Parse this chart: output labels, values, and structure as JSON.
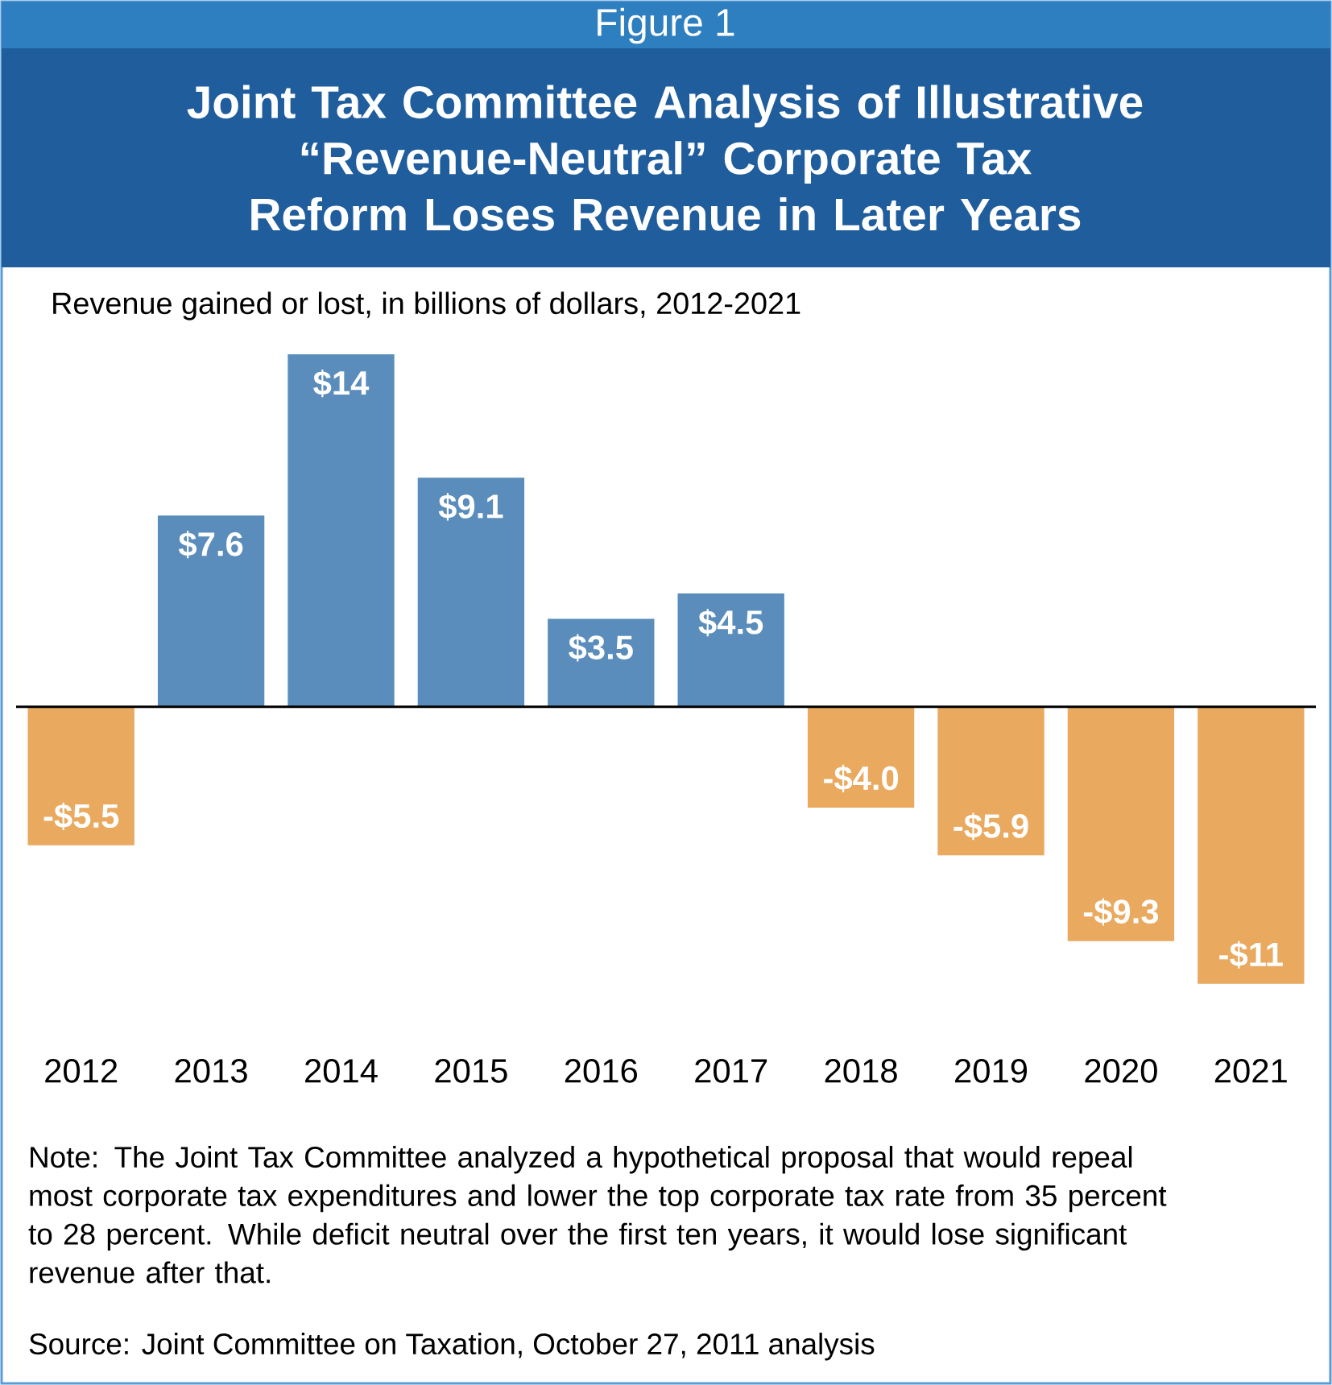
{
  "chart_data": {
    "type": "bar",
    "title": "Joint Tax Committee Analysis of Illustrative “Revenue-Neutral” Corporate Tax Reform Loses Revenue in Later Years",
    "subtitle": "Revenue gained or lost, in billions of dollars, 2012-2021",
    "categories": [
      "2012",
      "2013",
      "2014",
      "2015",
      "2016",
      "2017",
      "2018",
      "2019",
      "2020",
      "2021"
    ],
    "values": [
      -5.5,
      7.6,
      14,
      9.1,
      3.5,
      4.5,
      -4.0,
      -5.9,
      -9.3,
      -11
    ],
    "value_labels": [
      "-$5.5",
      "$7.6",
      "$14",
      "$9.1",
      "$3.5",
      "$4.5",
      "-$4.0",
      "-$5.9",
      "-$9.3",
      "-$11"
    ],
    "colors": [
      "#e9a95f",
      "#5a8dbb",
      "#5a8dbb",
      "#5a8dbb",
      "#5a8dbb",
      "#5a8dbb",
      "#e9a95f",
      "#e9a95f",
      "#e9a95f",
      "#e9a95f"
    ],
    "annotations": [
      "Figure 1",
      "Note: The Joint Tax Committee analyzed a hypothetical proposal that would repeal most corporate tax expenditures and lower the top corporate tax rate from 35 percent to 28 percent.  While deficit neutral over the first ten years, it would lose significant revenue after that.",
      "Source: Joint Committee on Taxation, October 27, 2011 analysis"
    ]
  }
}
